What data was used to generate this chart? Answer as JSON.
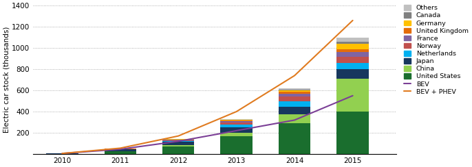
{
  "years": [
    2010,
    2011,
    2012,
    2013,
    2014,
    2015
  ],
  "categories": [
    "United States",
    "China",
    "Japan",
    "Netherlands",
    "Norway",
    "France",
    "United Kingdom",
    "Germany",
    "Canada",
    "Others"
  ],
  "colors": [
    "#1a6e2e",
    "#92d050",
    "#17375e",
    "#00b0f0",
    "#c0504d",
    "#8064a2",
    "#e46c0a",
    "#ffc000",
    "#808080",
    "#c0c0c0"
  ],
  "bar_data": {
    "United States": [
      3,
      25,
      72,
      170,
      290,
      400
    ],
    "China": [
      0,
      3,
      13,
      30,
      83,
      310
    ],
    "Japan": [
      2,
      15,
      28,
      50,
      72,
      90
    ],
    "Netherlands": [
      0,
      2,
      8,
      25,
      55,
      60
    ],
    "Norway": [
      0,
      2,
      8,
      20,
      45,
      60
    ],
    "France": [
      0,
      1,
      5,
      12,
      25,
      40
    ],
    "United Kingdom": [
      0,
      1,
      3,
      8,
      18,
      30
    ],
    "Germany": [
      0,
      1,
      2,
      5,
      12,
      50
    ],
    "Canada": [
      0,
      1,
      2,
      4,
      8,
      18
    ],
    "Others": [
      0,
      1,
      2,
      4,
      12,
      42
    ]
  },
  "bev_line": [
    5,
    45,
    120,
    220,
    320,
    550
  ],
  "bev_phev_line": [
    5,
    55,
    170,
    400,
    740,
    1260
  ],
  "ylim": [
    0,
    1400
  ],
  "yticks": [
    0,
    200,
    400,
    600,
    800,
    1000,
    1200,
    1400
  ],
  "ylabel": "Electric car stock (thousands)",
  "bev_color": "#7b3f96",
  "bev_phev_color": "#e07b20",
  "background_color": "#ffffff",
  "grid_color": "#999999",
  "bar_width": 0.55,
  "fig_width": 6.86,
  "fig_height": 2.44,
  "dpi": 100
}
